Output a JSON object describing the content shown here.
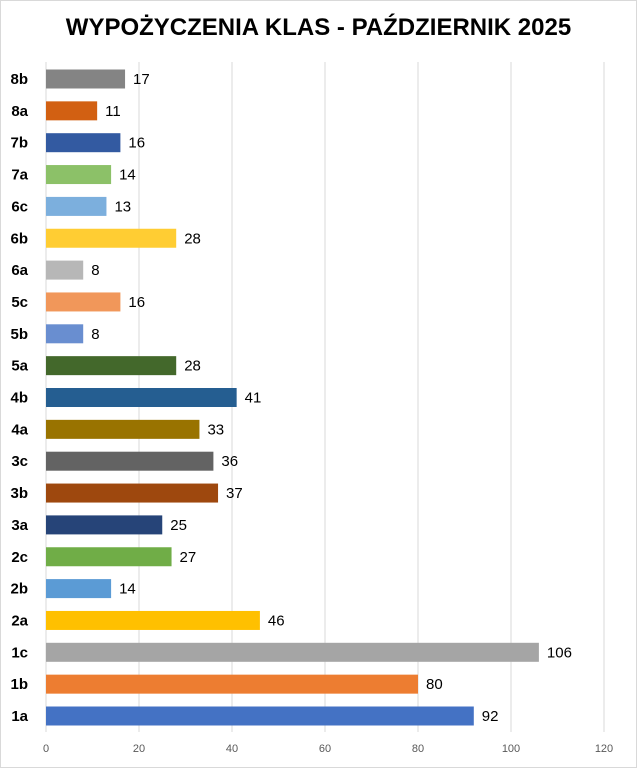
{
  "chart_data": {
    "type": "bar",
    "orientation": "horizontal",
    "title": "WYPOŻYCZENIA KLAS - PAŹDZIERNIK 2025",
    "xlabel": "",
    "ylabel": "",
    "xlim": [
      0,
      120
    ],
    "xticks": [
      0,
      20,
      40,
      60,
      80,
      100,
      120
    ],
    "grid": true,
    "legend": "none",
    "categories": [
      "1a",
      "1b",
      "1c",
      "2a",
      "2b",
      "2c",
      "3a",
      "3b",
      "3c",
      "4a",
      "4b",
      "5a",
      "5b",
      "5c",
      "6a",
      "6b",
      "6c",
      "7a",
      "7b",
      "8a",
      "8b"
    ],
    "values": [
      92,
      80,
      106,
      46,
      14,
      27,
      25,
      37,
      36,
      33,
      41,
      28,
      8,
      16,
      8,
      28,
      13,
      14,
      16,
      11,
      17
    ],
    "colors": [
      "#4472c4",
      "#ed7d31",
      "#a5a5a5",
      "#ffc000",
      "#5b9bd5",
      "#70ad47",
      "#264478",
      "#9e480e",
      "#636363",
      "#997300",
      "#255e91",
      "#43682b",
      "#698ed0",
      "#f1975a",
      "#b7b7b7",
      "#ffcd33",
      "#7cafdd",
      "#8cc168",
      "#335aa1",
      "#d26012",
      "#848484"
    ]
  }
}
